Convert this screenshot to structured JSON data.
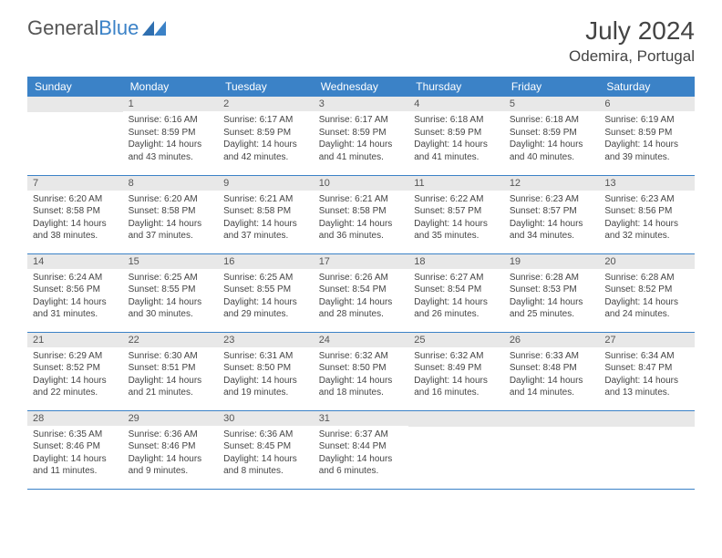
{
  "logo": {
    "text1": "General",
    "text2": "Blue"
  },
  "title": "July 2024",
  "location": "Odemira, Portugal",
  "colors": {
    "header_bg": "#3b82c7",
    "header_fg": "#ffffff",
    "daynum_bg": "#e8e8e8",
    "text": "#444444",
    "border": "#3b82c7"
  },
  "weekdays": [
    "Sunday",
    "Monday",
    "Tuesday",
    "Wednesday",
    "Thursday",
    "Friday",
    "Saturday"
  ],
  "weeks": [
    [
      {
        "n": "",
        "lines": []
      },
      {
        "n": "1",
        "lines": [
          "Sunrise: 6:16 AM",
          "Sunset: 8:59 PM",
          "Daylight: 14 hours",
          "and 43 minutes."
        ]
      },
      {
        "n": "2",
        "lines": [
          "Sunrise: 6:17 AM",
          "Sunset: 8:59 PM",
          "Daylight: 14 hours",
          "and 42 minutes."
        ]
      },
      {
        "n": "3",
        "lines": [
          "Sunrise: 6:17 AM",
          "Sunset: 8:59 PM",
          "Daylight: 14 hours",
          "and 41 minutes."
        ]
      },
      {
        "n": "4",
        "lines": [
          "Sunrise: 6:18 AM",
          "Sunset: 8:59 PM",
          "Daylight: 14 hours",
          "and 41 minutes."
        ]
      },
      {
        "n": "5",
        "lines": [
          "Sunrise: 6:18 AM",
          "Sunset: 8:59 PM",
          "Daylight: 14 hours",
          "and 40 minutes."
        ]
      },
      {
        "n": "6",
        "lines": [
          "Sunrise: 6:19 AM",
          "Sunset: 8:59 PM",
          "Daylight: 14 hours",
          "and 39 minutes."
        ]
      }
    ],
    [
      {
        "n": "7",
        "lines": [
          "Sunrise: 6:20 AM",
          "Sunset: 8:58 PM",
          "Daylight: 14 hours",
          "and 38 minutes."
        ]
      },
      {
        "n": "8",
        "lines": [
          "Sunrise: 6:20 AM",
          "Sunset: 8:58 PM",
          "Daylight: 14 hours",
          "and 37 minutes."
        ]
      },
      {
        "n": "9",
        "lines": [
          "Sunrise: 6:21 AM",
          "Sunset: 8:58 PM",
          "Daylight: 14 hours",
          "and 37 minutes."
        ]
      },
      {
        "n": "10",
        "lines": [
          "Sunrise: 6:21 AM",
          "Sunset: 8:58 PM",
          "Daylight: 14 hours",
          "and 36 minutes."
        ]
      },
      {
        "n": "11",
        "lines": [
          "Sunrise: 6:22 AM",
          "Sunset: 8:57 PM",
          "Daylight: 14 hours",
          "and 35 minutes."
        ]
      },
      {
        "n": "12",
        "lines": [
          "Sunrise: 6:23 AM",
          "Sunset: 8:57 PM",
          "Daylight: 14 hours",
          "and 34 minutes."
        ]
      },
      {
        "n": "13",
        "lines": [
          "Sunrise: 6:23 AM",
          "Sunset: 8:56 PM",
          "Daylight: 14 hours",
          "and 32 minutes."
        ]
      }
    ],
    [
      {
        "n": "14",
        "lines": [
          "Sunrise: 6:24 AM",
          "Sunset: 8:56 PM",
          "Daylight: 14 hours",
          "and 31 minutes."
        ]
      },
      {
        "n": "15",
        "lines": [
          "Sunrise: 6:25 AM",
          "Sunset: 8:55 PM",
          "Daylight: 14 hours",
          "and 30 minutes."
        ]
      },
      {
        "n": "16",
        "lines": [
          "Sunrise: 6:25 AM",
          "Sunset: 8:55 PM",
          "Daylight: 14 hours",
          "and 29 minutes."
        ]
      },
      {
        "n": "17",
        "lines": [
          "Sunrise: 6:26 AM",
          "Sunset: 8:54 PM",
          "Daylight: 14 hours",
          "and 28 minutes."
        ]
      },
      {
        "n": "18",
        "lines": [
          "Sunrise: 6:27 AM",
          "Sunset: 8:54 PM",
          "Daylight: 14 hours",
          "and 26 minutes."
        ]
      },
      {
        "n": "19",
        "lines": [
          "Sunrise: 6:28 AM",
          "Sunset: 8:53 PM",
          "Daylight: 14 hours",
          "and 25 minutes."
        ]
      },
      {
        "n": "20",
        "lines": [
          "Sunrise: 6:28 AM",
          "Sunset: 8:52 PM",
          "Daylight: 14 hours",
          "and 24 minutes."
        ]
      }
    ],
    [
      {
        "n": "21",
        "lines": [
          "Sunrise: 6:29 AM",
          "Sunset: 8:52 PM",
          "Daylight: 14 hours",
          "and 22 minutes."
        ]
      },
      {
        "n": "22",
        "lines": [
          "Sunrise: 6:30 AM",
          "Sunset: 8:51 PM",
          "Daylight: 14 hours",
          "and 21 minutes."
        ]
      },
      {
        "n": "23",
        "lines": [
          "Sunrise: 6:31 AM",
          "Sunset: 8:50 PM",
          "Daylight: 14 hours",
          "and 19 minutes."
        ]
      },
      {
        "n": "24",
        "lines": [
          "Sunrise: 6:32 AM",
          "Sunset: 8:50 PM",
          "Daylight: 14 hours",
          "and 18 minutes."
        ]
      },
      {
        "n": "25",
        "lines": [
          "Sunrise: 6:32 AM",
          "Sunset: 8:49 PM",
          "Daylight: 14 hours",
          "and 16 minutes."
        ]
      },
      {
        "n": "26",
        "lines": [
          "Sunrise: 6:33 AM",
          "Sunset: 8:48 PM",
          "Daylight: 14 hours",
          "and 14 minutes."
        ]
      },
      {
        "n": "27",
        "lines": [
          "Sunrise: 6:34 AM",
          "Sunset: 8:47 PM",
          "Daylight: 14 hours",
          "and 13 minutes."
        ]
      }
    ],
    [
      {
        "n": "28",
        "lines": [
          "Sunrise: 6:35 AM",
          "Sunset: 8:46 PM",
          "Daylight: 14 hours",
          "and 11 minutes."
        ]
      },
      {
        "n": "29",
        "lines": [
          "Sunrise: 6:36 AM",
          "Sunset: 8:46 PM",
          "Daylight: 14 hours",
          "and 9 minutes."
        ]
      },
      {
        "n": "30",
        "lines": [
          "Sunrise: 6:36 AM",
          "Sunset: 8:45 PM",
          "Daylight: 14 hours",
          "and 8 minutes."
        ]
      },
      {
        "n": "31",
        "lines": [
          "Sunrise: 6:37 AM",
          "Sunset: 8:44 PM",
          "Daylight: 14 hours",
          "and 6 minutes."
        ]
      },
      {
        "n": "",
        "lines": []
      },
      {
        "n": "",
        "lines": []
      },
      {
        "n": "",
        "lines": []
      }
    ]
  ]
}
